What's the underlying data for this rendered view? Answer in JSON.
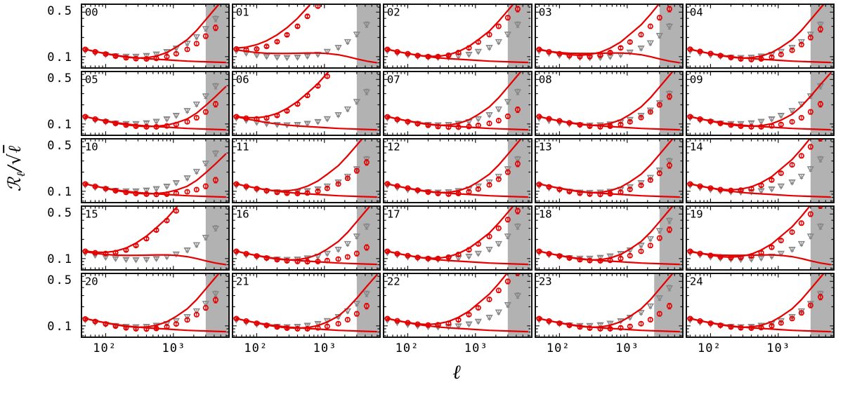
{
  "figure": {
    "ylabel_script": "ℛ",
    "ylabel_sub": "ℓ",
    "ylabel_mid": "/√",
    "ylabel_arg": "ℓ",
    "xlabel": "ℓ"
  },
  "chart_data": {
    "type": "scatter",
    "description": "5x5 grid of log-log panels (labels 00-24) showing ratio R_ell/sqrt(ell) vs multipole ell; red open circles with error bars (data), gray open down-triangles with error bars (reference), red model curves (one rising, one flat/declining), and a gray shaded exclusion band at high ell.",
    "title": "",
    "axes": {
      "x_range": [
        45,
        6500
      ],
      "y_range": [
        0.068,
        0.65
      ],
      "x_scale": "log",
      "y_scale": "log",
      "x_ticks": [
        {
          "value": 100,
          "label": "10²"
        },
        {
          "value": 1000,
          "label": "10³"
        }
      ],
      "y_ticks": [
        {
          "value": 0.5,
          "label": "0.5"
        },
        {
          "value": 0.1,
          "label": "0.1"
        }
      ],
      "xlabel": "ℓ",
      "ylabel": "ℛℓ/√ℓ"
    },
    "shade_band": {
      "x_start": 3000,
      "x_end": 6500,
      "color": "#ababab"
    },
    "colors": {
      "data": "#e60000",
      "reference": "#878787",
      "frame": "#101010"
    },
    "x_markers": [
      50,
      70,
      100,
      140,
      200,
      280,
      400,
      560,
      800,
      1100,
      1600,
      2200,
      3000,
      4200
    ],
    "x_line": [
      50,
      70,
      100,
      140,
      200,
      280,
      400,
      560,
      800,
      1100,
      1600,
      2200,
      3000,
      4200,
      6000
    ],
    "error_fractions": [
      0.035,
      0.035,
      0.035,
      0.038,
      0.04,
      0.042,
      0.045,
      0.048,
      0.052,
      0.058,
      0.065,
      0.075,
      0.085,
      0.1
    ],
    "series_library": {
      "cA": [
        0.13,
        0.119,
        0.11,
        0.102,
        0.096,
        0.092,
        0.09,
        0.089,
        0.09,
        0.093,
        0.098,
        0.106,
        0.12,
        0.15
      ],
      "cA2": [
        0.13,
        0.119,
        0.11,
        0.102,
        0.096,
        0.092,
        0.09,
        0.09,
        0.093,
        0.098,
        0.108,
        0.125,
        0.155,
        0.205
      ],
      "cA3": [
        0.129,
        0.118,
        0.109,
        0.101,
        0.095,
        0.091,
        0.089,
        0.089,
        0.091,
        0.095,
        0.102,
        0.113,
        0.132,
        0.168
      ],
      "cB": [
        0.13,
        0.119,
        0.11,
        0.102,
        0.096,
        0.093,
        0.092,
        0.094,
        0.1,
        0.111,
        0.13,
        0.16,
        0.21,
        0.285
      ],
      "cB2": [
        0.128,
        0.117,
        0.107,
        0.099,
        0.093,
        0.09,
        0.089,
        0.091,
        0.097,
        0.107,
        0.124,
        0.15,
        0.192,
        0.255
      ],
      "cB3": [
        0.131,
        0.121,
        0.112,
        0.104,
        0.097,
        0.092,
        0.09,
        0.092,
        0.098,
        0.108,
        0.126,
        0.155,
        0.2,
        0.27
      ],
      "cC": [
        0.13,
        0.12,
        0.112,
        0.106,
        0.103,
        0.104,
        0.11,
        0.124,
        0.15,
        0.192,
        0.26,
        0.36,
        0.5,
        0.68
      ],
      "cC2": [
        0.13,
        0.119,
        0.111,
        0.104,
        0.1,
        0.1,
        0.105,
        0.116,
        0.137,
        0.17,
        0.222,
        0.3,
        0.41,
        0.56
      ],
      "cD": [
        0.132,
        0.129,
        0.132,
        0.145,
        0.172,
        0.22,
        0.3,
        0.43,
        0.62,
        null,
        null,
        null,
        null,
        null
      ],
      "cD2": [
        0.13,
        0.123,
        0.12,
        0.124,
        0.136,
        0.16,
        0.205,
        0.28,
        0.395,
        0.56,
        null,
        null,
        null,
        null
      ],
      "tA": [
        0.124,
        0.114,
        0.106,
        0.101,
        0.098,
        0.097,
        0.098,
        0.102,
        0.109,
        0.121,
        0.14,
        0.172,
        0.225,
        0.32
      ],
      "tB": [
        0.125,
        0.115,
        0.108,
        0.103,
        0.101,
        0.101,
        0.104,
        0.11,
        0.12,
        0.136,
        0.162,
        0.205,
        0.275,
        0.395
      ],
      "tC": [
        0.123,
        0.113,
        0.105,
        0.1,
        0.097,
        0.096,
        0.097,
        0.1,
        0.107,
        0.118,
        0.136,
        0.165,
        0.215,
        0.3
      ],
      "hA2": [
        0.131,
        0.12,
        0.111,
        0.103,
        0.097,
        0.093,
        0.092,
        0.094,
        0.101,
        0.115,
        0.142,
        0.19,
        0.272,
        0.415,
        0.64
      ],
      "hB": [
        0.131,
        0.12,
        0.111,
        0.104,
        0.098,
        0.095,
        0.096,
        0.102,
        0.116,
        0.141,
        0.185,
        0.258,
        0.38,
        0.58,
        0.9
      ],
      "hC": [
        0.131,
        0.121,
        0.113,
        0.107,
        0.105,
        0.108,
        0.117,
        0.136,
        0.17,
        0.225,
        0.315,
        0.46,
        0.69,
        1.06,
        1.7
      ],
      "hC2": [
        0.131,
        0.12,
        0.112,
        0.105,
        0.101,
        0.101,
        0.107,
        0.12,
        0.145,
        0.185,
        0.252,
        0.36,
        0.53,
        0.8,
        1.25
      ],
      "hD": [
        0.136,
        0.141,
        0.154,
        0.178,
        0.22,
        0.285,
        0.4,
        0.59,
        0.9,
        1.4,
        2.2,
        null,
        null,
        null,
        null
      ],
      "hD2": [
        0.131,
        0.126,
        0.125,
        0.131,
        0.146,
        0.175,
        0.225,
        0.305,
        0.43,
        0.63,
        0.95,
        1.5,
        null,
        null,
        null
      ],
      "hLow": [
        0.131,
        0.12,
        0.111,
        0.103,
        0.097,
        0.093,
        0.091,
        0.092,
        0.096,
        0.104,
        0.12,
        0.148,
        0.195,
        0.27,
        0.39
      ],
      "lA": [
        0.13,
        0.12,
        0.112,
        0.105,
        0.1,
        0.096,
        0.093,
        0.091,
        0.089,
        0.087,
        0.085,
        0.084,
        0.083,
        0.082,
        0.081
      ],
      "lB": [
        0.128,
        0.121,
        0.116,
        0.113,
        0.112,
        0.112,
        0.113,
        0.114,
        0.114,
        0.112,
        0.107,
        0.1,
        0.092,
        0.085,
        0.08
      ]
    },
    "panels": [
      {
        "label": "00",
        "circles": "cB",
        "line_hi": "hB",
        "triangles": "tB",
        "line_lo": "lA",
        "shade_start": 3000
      },
      {
        "label": "01",
        "circles": "cD",
        "line_hi": "hD",
        "triangles": "tA",
        "line_lo": "lB",
        "shade_start": 3000
      },
      {
        "label": "02",
        "circles": "cC2",
        "line_hi": "hC2",
        "triangles": "tA",
        "line_lo": "lA",
        "shade_start": 3000
      },
      {
        "label": "03",
        "circles": "cC2",
        "line_hi": "hC",
        "triangles": "tC",
        "line_lo": "lB",
        "shade_start": 3000
      },
      {
        "label": "04",
        "circles": "cB3",
        "line_hi": "hB",
        "triangles": "tA",
        "line_lo": "lA",
        "shade_start": 3000
      },
      {
        "label": "05",
        "circles": "cA2",
        "line_hi": "hLow",
        "triangles": "tB",
        "line_lo": "lA",
        "shade_start": 3000
      },
      {
        "label": "06",
        "circles": "cD2",
        "line_hi": "hD2",
        "triangles": "tA",
        "line_lo": "lA",
        "shade_start": 3000
      },
      {
        "label": "07",
        "circles": "cA3",
        "line_hi": "hB",
        "triangles": "tA",
        "line_lo": "lA",
        "shade_start": 3000
      },
      {
        "label": "08",
        "circles": "cB3",
        "line_hi": "hB",
        "triangles": "tC",
        "line_lo": "lA",
        "shade_start": 3000
      },
      {
        "label": "09",
        "circles": "cA2",
        "line_hi": "hA2",
        "triangles": "tB",
        "line_lo": "lA",
        "shade_start": 3000
      },
      {
        "label": "10",
        "circles": "cA",
        "line_hi": "hLow",
        "triangles": "tB",
        "line_lo": "lA",
        "shade_start": 3000
      },
      {
        "label": "11",
        "circles": "cB",
        "line_hi": "hC2",
        "triangles": "tA",
        "line_lo": "lA",
        "shade_start": 3000
      },
      {
        "label": "12",
        "circles": "cB3",
        "line_hi": "hB",
        "triangles": "tA",
        "line_lo": "lA",
        "shade_start": 3000
      },
      {
        "label": "13",
        "circles": "cB2",
        "line_hi": "hB",
        "triangles": "tC",
        "line_lo": "lA",
        "shade_start": 3000
      },
      {
        "label": "14",
        "circles": "cC",
        "line_hi": "hC",
        "triangles": "tA",
        "line_lo": "lA",
        "shade_start": 3000
      },
      {
        "label": "15",
        "circles": "cD2",
        "line_hi": "hD2",
        "triangles": "tC",
        "line_lo": "lB",
        "shade_start": 3000
      },
      {
        "label": "16",
        "circles": "cA",
        "line_hi": "hB",
        "triangles": "tA",
        "line_lo": "lA",
        "shade_start": 3000
      },
      {
        "label": "17",
        "circles": "cC2",
        "line_hi": "hC2",
        "triangles": "tA",
        "line_lo": "lA",
        "shade_start": 3000
      },
      {
        "label": "18",
        "circles": "cB",
        "line_hi": "hB",
        "triangles": "tB",
        "line_lo": "lA",
        "shade_start": 3000
      },
      {
        "label": "19",
        "circles": "cC",
        "line_hi": "hC",
        "triangles": "tA",
        "line_lo": "lB",
        "shade_start": 3000
      },
      {
        "label": "20",
        "circles": "cB2",
        "line_hi": "hB",
        "triangles": "tA",
        "line_lo": "lA",
        "shade_start": 3000
      },
      {
        "label": "21",
        "circles": "cA2",
        "line_hi": "hA2",
        "triangles": "tA",
        "line_lo": "lA",
        "shade_start": 3000
      },
      {
        "label": "22",
        "circles": "cC",
        "line_hi": "hC",
        "triangles": "tC",
        "line_lo": "lA",
        "shade_start": 3000
      },
      {
        "label": "23",
        "circles": "cA2",
        "line_hi": "hB",
        "triangles": "tB",
        "line_lo": "lA",
        "shade_start": 2500
      },
      {
        "label": "24",
        "circles": "cB",
        "line_hi": "hB",
        "triangles": "tA",
        "line_lo": "lA",
        "shade_start": 3000
      }
    ]
  }
}
